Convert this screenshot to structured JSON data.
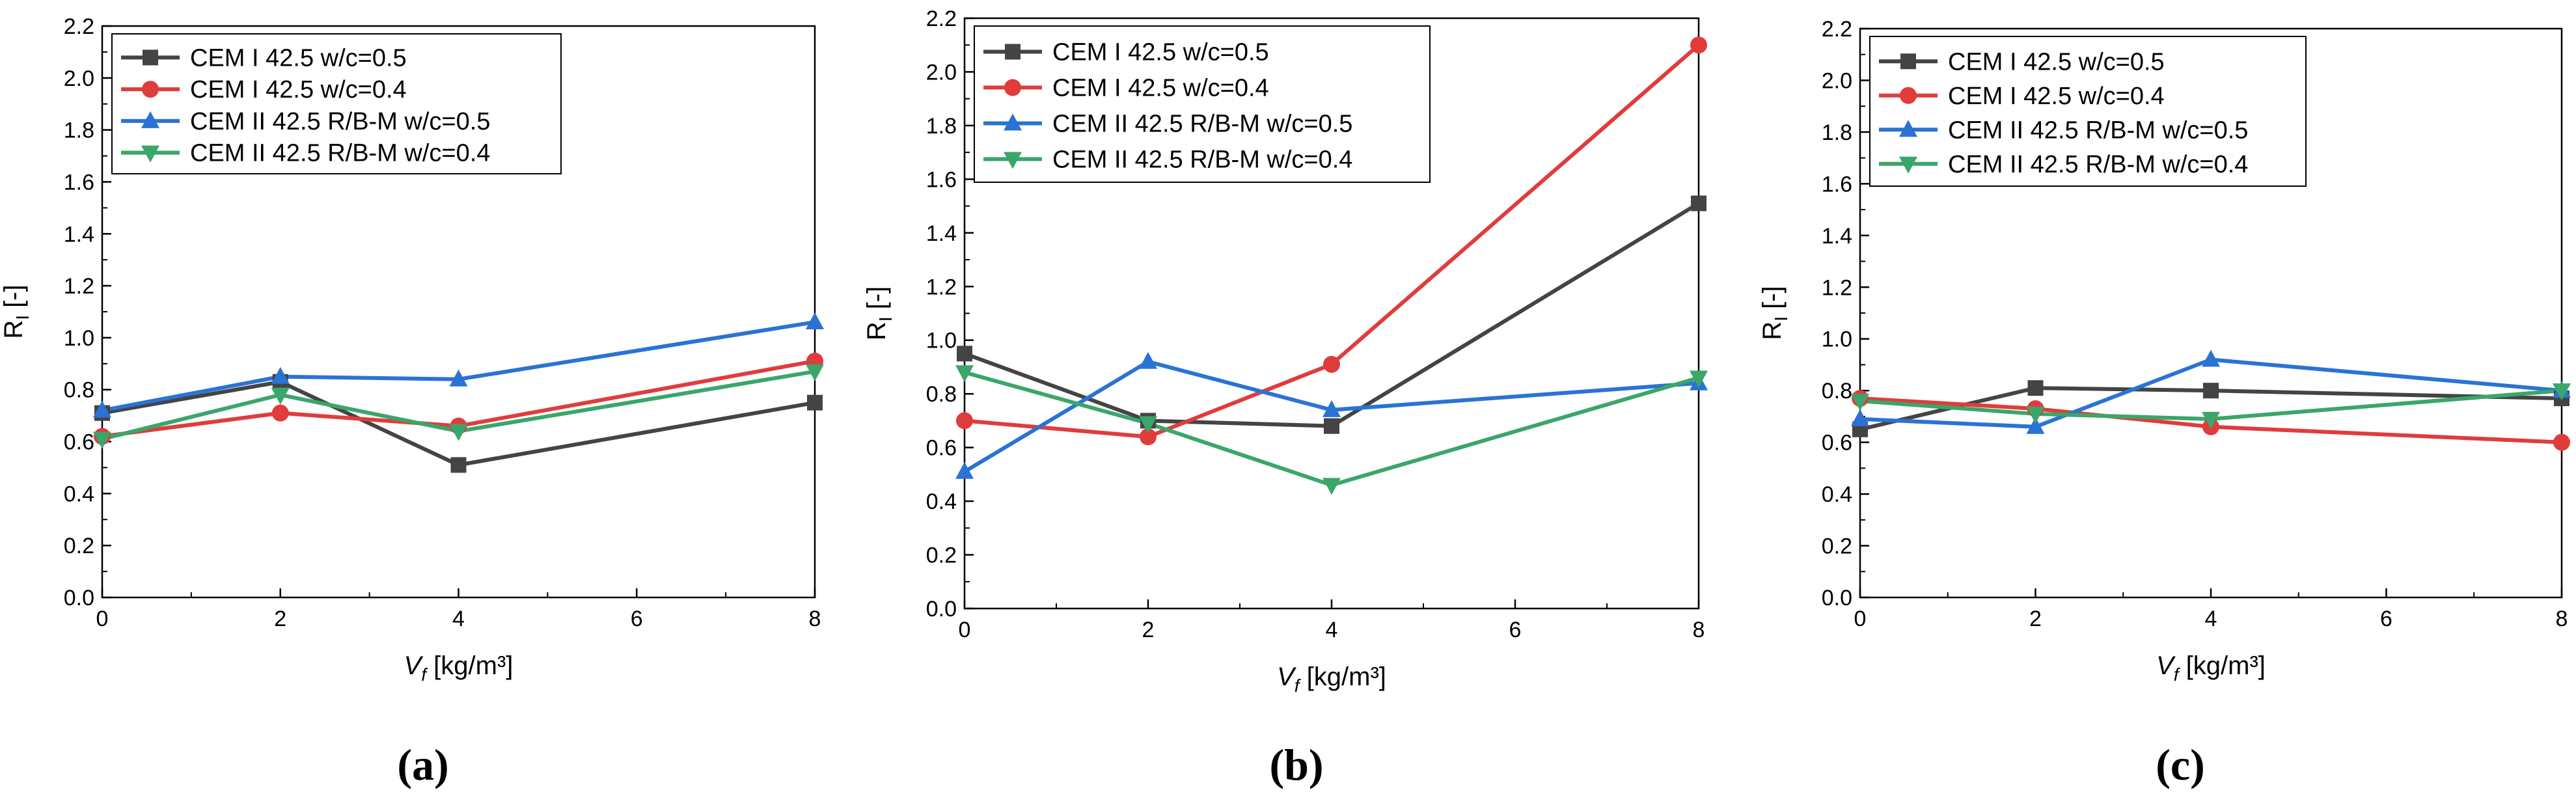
{
  "chart_data": [
    {
      "type": "line",
      "panel_label": "(a)",
      "xlabel_main": "V",
      "xlabel_sub": "f",
      "xlabel_rest": " [kg/m³]",
      "ylabel_main": "R",
      "ylabel_sub": "I",
      "ylabel_rest": " [-]",
      "xlim": [
        0,
        8
      ],
      "ylim": [
        0,
        2.2
      ],
      "xticks": [
        0,
        2,
        4,
        6,
        8
      ],
      "yticks": [
        0.0,
        0.2,
        0.4,
        0.6,
        0.8,
        1.0,
        1.2,
        1.4,
        1.6,
        1.8,
        2.0,
        2.2
      ],
      "x": [
        0,
        2,
        4,
        8
      ],
      "legend_position": "top-left",
      "series": [
        {
          "name": "CEM I 42.5 w/c=0.5",
          "color": "#444444",
          "marker": "square",
          "values": [
            0.71,
            0.83,
            0.51,
            0.75
          ]
        },
        {
          "name": "CEM I 42.5 w/c=0.4",
          "color": "#e03c3c",
          "marker": "circle",
          "values": [
            0.62,
            0.71,
            0.66,
            0.91
          ]
        },
        {
          "name": "CEM II 42.5 R/B-M w/c=0.5",
          "color": "#2a73d4",
          "marker": "triangle-up",
          "values": [
            0.72,
            0.85,
            0.84,
            1.06
          ]
        },
        {
          "name": "CEM II 42.5 R/B-M w/c=0.4",
          "color": "#3aa66a",
          "marker": "triangle-down",
          "values": [
            0.61,
            0.78,
            0.64,
            0.87
          ]
        }
      ]
    },
    {
      "type": "line",
      "panel_label": "(b)",
      "xlabel_main": "V",
      "xlabel_sub": "f",
      "xlabel_rest": " [kg/m³]",
      "ylabel_main": "R",
      "ylabel_sub": "I",
      "ylabel_rest": " [-]",
      "xlim": [
        0,
        8
      ],
      "ylim": [
        0,
        2.2
      ],
      "xticks": [
        0,
        2,
        4,
        6,
        8
      ],
      "yticks": [
        0.0,
        0.2,
        0.4,
        0.6,
        0.8,
        1.0,
        1.2,
        1.4,
        1.6,
        1.8,
        2.0,
        2.2
      ],
      "x": [
        0,
        2,
        4,
        8
      ],
      "legend_position": "top-left",
      "series": [
        {
          "name": "CEM I 42.5 w/c=0.5",
          "color": "#444444",
          "marker": "square",
          "values": [
            0.95,
            0.7,
            0.68,
            1.51
          ]
        },
        {
          "name": "CEM I 42.5 w/c=0.4",
          "color": "#e03c3c",
          "marker": "circle",
          "values": [
            0.7,
            0.64,
            0.91,
            2.1
          ]
        },
        {
          "name": "CEM II 42.5 R/B-M w/c=0.5",
          "color": "#2a73d4",
          "marker": "triangle-up",
          "values": [
            0.51,
            0.92,
            0.74,
            0.84
          ]
        },
        {
          "name": "CEM II 42.5 R/B-M w/c=0.4",
          "color": "#3aa66a",
          "marker": "triangle-down",
          "values": [
            0.88,
            0.69,
            0.46,
            0.86
          ]
        }
      ]
    },
    {
      "type": "line",
      "panel_label": "(c)",
      "xlabel_main": "V",
      "xlabel_sub": "f",
      "xlabel_rest": " [kg/m³]",
      "ylabel_main": "R",
      "ylabel_sub": "I",
      "ylabel_rest": " [-]",
      "xlim": [
        0,
        8
      ],
      "ylim": [
        0,
        2.2
      ],
      "xticks": [
        0,
        2,
        4,
        6,
        8
      ],
      "yticks": [
        0.0,
        0.2,
        0.4,
        0.6,
        0.8,
        1.0,
        1.2,
        1.4,
        1.6,
        1.8,
        2.0,
        2.2
      ],
      "x": [
        0,
        2,
        4,
        8
      ],
      "legend_position": "top-left",
      "series": [
        {
          "name": "CEM I 42.5 w/c=0.5",
          "color": "#444444",
          "marker": "square",
          "values": [
            0.65,
            0.81,
            0.8,
            0.77
          ]
        },
        {
          "name": "CEM I 42.5 w/c=0.4",
          "color": "#e03c3c",
          "marker": "circle",
          "values": [
            0.77,
            0.73,
            0.66,
            0.6
          ]
        },
        {
          "name": "CEM II 42.5 R/B-M w/c=0.5",
          "color": "#2a73d4",
          "marker": "triangle-up",
          "values": [
            0.69,
            0.66,
            0.92,
            0.8
          ]
        },
        {
          "name": "CEM II 42.5 R/B-M w/c=0.4",
          "color": "#3aa66a",
          "marker": "triangle-down",
          "values": [
            0.76,
            0.71,
            0.69,
            0.8
          ]
        }
      ]
    }
  ]
}
